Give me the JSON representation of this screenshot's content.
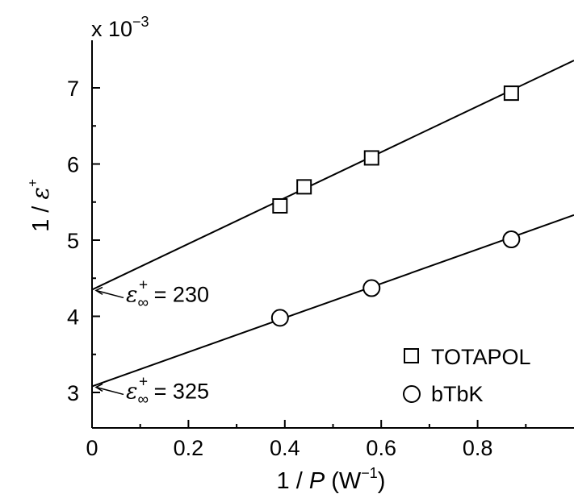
{
  "chart_data": {
    "type": "scatter",
    "scale_label": "x 10",
    "scale_exponent": "−3",
    "xlabel": {
      "prefix": "1 / ",
      "var": "P",
      "unit_open": " (W",
      "unit_exp": "−1",
      "unit_close": ")"
    },
    "ylabel": {
      "prefix": "1 / ",
      "var": "ε",
      "sup": "+"
    },
    "xlim": [
      0,
      1.0
    ],
    "ylim": [
      2.6,
      7.5
    ],
    "x_ticks": [
      0,
      0.2,
      0.4,
      0.6,
      0.8
    ],
    "x_tick_labels": [
      "0",
      "0.2",
      "0.4",
      "0.6",
      "0.8"
    ],
    "y_ticks": [
      3,
      4,
      5,
      6,
      7
    ],
    "y_tick_labels": [
      "3",
      "4",
      "5",
      "6",
      "7"
    ],
    "grid": false,
    "legend_position": "bottom-right",
    "series": [
      {
        "name": "TOTAPOL",
        "marker": "square",
        "x": [
          0.39,
          0.44,
          0.58,
          0.87
        ],
        "y": [
          5.45,
          5.7,
          6.08,
          6.93
        ],
        "fit": {
          "intercept": 4.35,
          "slope": 3.01
        }
      },
      {
        "name": "bTbK",
        "marker": "circle",
        "x": [
          0.39,
          0.58,
          0.87
        ],
        "y": [
          3.98,
          4.37,
          5.01
        ],
        "fit": {
          "intercept": 3.08,
          "slope": 2.25
        }
      }
    ],
    "annotations": [
      {
        "symbol": "ε",
        "sub": "∞",
        "sup": "+",
        "text": " = 230",
        "x": 0,
        "y": 4.35
      },
      {
        "symbol": "ε",
        "sub": "∞",
        "sup": "+",
        "text": " = 325",
        "x": 0,
        "y": 3.08
      }
    ]
  }
}
